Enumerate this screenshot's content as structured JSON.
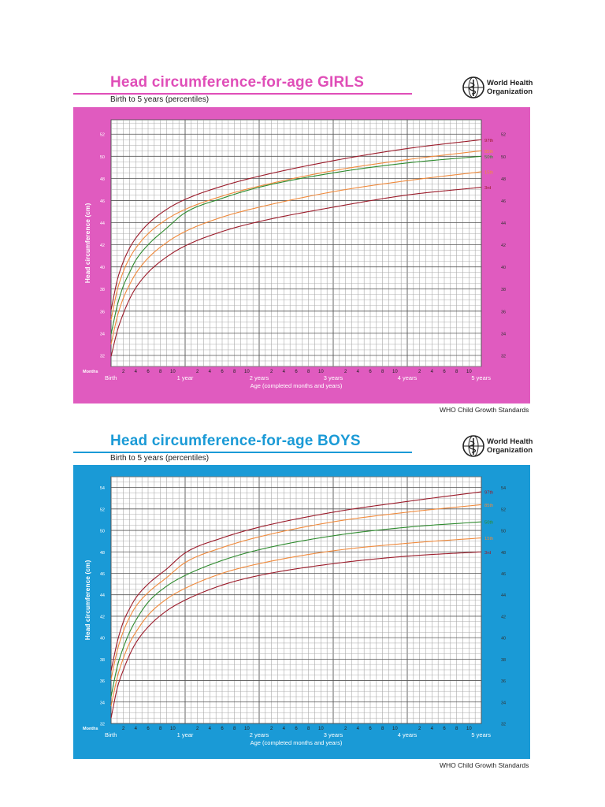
{
  "charts": [
    {
      "id": "girls",
      "title": "Head circumference-for-age  GIRLS",
      "subtitle": "Birth to 5 years (percentiles)",
      "organization": [
        "World Health",
        "Organization"
      ],
      "footer": "WHO Child Growth Standards",
      "colors": {
        "frame": "#e05bbf",
        "title": "#e04eb8",
        "rule": "#e04eb8",
        "p97": "#9b1b2a",
        "p85": "#f08a3c",
        "p50": "#2e8b2e",
        "p15": "#f08a3c",
        "p3": "#9b1b2a"
      }
    },
    {
      "id": "boys",
      "title": "Head circumference-for-age  BOYS",
      "subtitle": "Birth to 5 years (percentiles)",
      "organization": [
        "World Health",
        "Organization"
      ],
      "footer": "WHO Child Growth Standards",
      "colors": {
        "frame": "#1a9ad6",
        "title": "#1a9ad6",
        "rule": "#1a9ad6",
        "p97": "#9b1b2a",
        "p85": "#f08a3c",
        "p50": "#2e8b2e",
        "p15": "#f08a3c",
        "p3": "#9b1b2a"
      }
    }
  ],
  "chart_data": [
    {
      "type": "line",
      "title": "Head circumference-for-age  GIRLS",
      "subtitle": "Birth to 5 years (percentiles)",
      "xlabel": "Age (completed months and years)",
      "ylabel": "Head circumference (cm)",
      "xlim": [
        0,
        60
      ],
      "ylim": [
        31,
        53.3
      ],
      "y_ticks": [
        32,
        34,
        36,
        38,
        40,
        42,
        44,
        46,
        48,
        50,
        52
      ],
      "x_year_labels": [
        "Birth",
        "1 year",
        "2 years",
        "3 years",
        "4 years",
        "5 years"
      ],
      "x_months_label": "Months",
      "x_month_ticks": [
        "2",
        "4",
        "6",
        "8",
        "10"
      ],
      "grid": true,
      "x": [
        0,
        1,
        2,
        3,
        4,
        6,
        9,
        12,
        18,
        24,
        36,
        48,
        60
      ],
      "series": [
        {
          "name": "97th",
          "values": [
            36.1,
            38.8,
            40.5,
            41.7,
            42.6,
            43.9,
            45.2,
            46.1,
            47.3,
            48.2,
            49.6,
            50.7,
            51.5
          ]
        },
        {
          "name": "85th",
          "values": [
            35.2,
            37.9,
            39.6,
            40.8,
            41.7,
            43.0,
            44.3,
            45.2,
            46.4,
            47.3,
            48.7,
            49.7,
            50.5
          ]
        },
        {
          "name": "50th",
          "values": [
            33.9,
            36.5,
            38.3,
            39.5,
            40.6,
            42.0,
            43.5,
            44.9,
            46.2,
            47.2,
            48.5,
            49.4,
            50.0
          ]
        },
        {
          "name": "15th",
          "values": [
            33.0,
            35.5,
            37.2,
            38.4,
            39.4,
            40.8,
            42.2,
            43.2,
            44.5,
            45.4,
            46.8,
            47.8,
            48.6
          ]
        },
        {
          "name": "3rd",
          "values": [
            31.9,
            34.2,
            35.8,
            37.1,
            38.1,
            39.5,
            40.9,
            41.9,
            43.2,
            44.1,
            45.4,
            46.5,
            47.2
          ]
        }
      ]
    },
    {
      "type": "line",
      "title": "Head circumference-for-age  BOYS",
      "subtitle": "Birth to 5 years (percentiles)",
      "xlabel": "Age (completed months and years)",
      "ylabel": "Head circumference (cm)",
      "xlim": [
        0,
        60
      ],
      "ylim": [
        32,
        55
      ],
      "y_ticks": [
        32,
        34,
        36,
        38,
        40,
        42,
        44,
        46,
        48,
        50,
        52,
        54
      ],
      "x_year_labels": [
        "Birth",
        "1 year",
        "2 years",
        "3 years",
        "4 years",
        "5 years"
      ],
      "x_months_label": "Months",
      "x_month_ticks": [
        "2",
        "4",
        "6",
        "8",
        "10"
      ],
      "grid": true,
      "x": [
        0,
        1,
        2,
        3,
        4,
        6,
        9,
        12,
        18,
        24,
        36,
        48,
        60
      ],
      "series": [
        {
          "name": "97th",
          "values": [
            36.9,
            39.6,
            41.5,
            42.7,
            43.7,
            45.0,
            46.4,
            47.9,
            49.3,
            50.3,
            51.7,
            52.7,
            53.6
          ]
        },
        {
          "name": "85th",
          "values": [
            36.1,
            38.8,
            40.6,
            41.9,
            42.9,
            44.2,
            45.6,
            47.0,
            48.4,
            49.4,
            50.8,
            51.7,
            52.4
          ]
        },
        {
          "name": "50th",
          "values": [
            34.5,
            37.3,
            39.1,
            40.5,
            41.6,
            43.3,
            44.8,
            45.8,
            47.2,
            48.2,
            49.5,
            50.3,
            50.8
          ]
        },
        {
          "name": "15th",
          "values": [
            33.6,
            36.3,
            38.1,
            39.5,
            40.5,
            42.1,
            43.6,
            44.6,
            46.0,
            46.9,
            48.1,
            48.8,
            49.3
          ]
        },
        {
          "name": "3rd",
          "values": [
            32.5,
            35.3,
            37.0,
            38.4,
            39.5,
            41.0,
            42.5,
            43.5,
            44.9,
            45.8,
            46.9,
            47.6,
            48.0
          ]
        }
      ]
    }
  ]
}
